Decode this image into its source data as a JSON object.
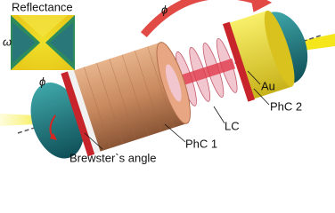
{
  "inset": {
    "title": "Reflectance",
    "y_label": "ω",
    "x_label": "ϕ"
  },
  "labels": {
    "rotation": "ϕ",
    "au": "Au",
    "phc2": "PhC 2",
    "lc": "LC",
    "phc1": "PhC 1",
    "brewster": "Brewster`s angle"
  }
}
